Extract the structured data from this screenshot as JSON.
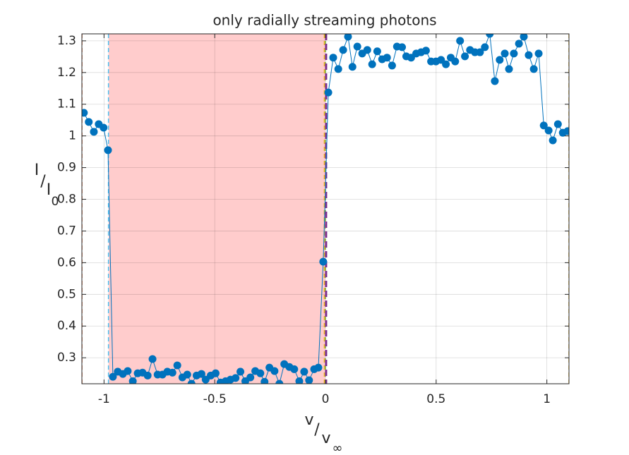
{
  "chart_data": {
    "type": "line",
    "title": "only radially streaming photons",
    "xlabel": [
      "v",
      "/",
      "v",
      "∞"
    ],
    "ylabel": [
      "I",
      "/",
      "I",
      "0"
    ],
    "xlim": [
      -1.1,
      1.1
    ],
    "ylim": [
      0.218,
      1.322
    ],
    "xticks": [
      -1,
      -0.5,
      0,
      0.5,
      1
    ],
    "yticks": [
      0.3,
      0.4,
      0.5,
      0.6,
      0.7,
      0.8,
      0.9,
      1,
      1.1,
      1.2,
      1.3
    ],
    "grid": true,
    "shaded_region": {
      "x": [
        -0.98,
        0
      ],
      "color": "#ffcccc"
    },
    "vlines": [
      {
        "x": -1.1,
        "color": "#D95319",
        "linewidth": 1.5
      },
      {
        "x": -0.98,
        "color": "#4DBEEE",
        "linewidth": 1.5
      },
      {
        "x": -0.005,
        "color": "#EDB120",
        "linewidth": 1.5
      },
      {
        "x": 0,
        "color": "#77AC30",
        "linewidth": 1.5
      },
      {
        "x": 0.003,
        "color": "#7E2F8E",
        "linewidth": 3
      },
      {
        "x": 1.1,
        "color": "#EDB120",
        "linewidth": 1.5
      }
    ],
    "x": [
      -1.091,
      -1.069,
      -1.046,
      -1.024,
      -1.002,
      -0.982,
      -0.96,
      -0.938,
      -0.915,
      -0.893,
      -0.87,
      -0.848,
      -0.826,
      -0.803,
      -0.781,
      -0.758,
      -0.736,
      -0.714,
      -0.691,
      -0.669,
      -0.646,
      -0.624,
      -0.605,
      -0.582,
      -0.56,
      -0.541,
      -0.518,
      -0.496,
      -0.474,
      -0.451,
      -0.429,
      -0.406,
      -0.384,
      -0.362,
      -0.339,
      -0.317,
      -0.294,
      -0.275,
      -0.253,
      -0.23,
      -0.208,
      -0.186,
      -0.163,
      -0.141,
      -0.118,
      -0.096,
      -0.074,
      -0.051,
      -0.032,
      -0.01,
      0.013,
      0.035,
      0.058,
      0.08,
      0.102,
      0.122,
      0.144,
      0.166,
      0.189,
      0.211,
      0.234,
      0.256,
      0.278,
      0.301,
      0.323,
      0.346,
      0.365,
      0.387,
      0.41,
      0.432,
      0.454,
      0.477,
      0.499,
      0.522,
      0.544,
      0.566,
      0.586,
      0.608,
      0.63,
      0.653,
      0.675,
      0.698,
      0.72,
      0.742,
      0.765,
      0.787,
      0.81,
      0.829,
      0.851,
      0.874,
      0.896,
      0.918,
      0.941,
      0.963,
      0.986,
      1.008,
      1.027,
      1.05,
      1.072,
      1.094
    ],
    "series": [
      {
        "color": "#0072BD",
        "values": [
          1.073,
          1.044,
          1.013,
          1.037,
          1.026,
          0.955,
          0.24,
          0.256,
          0.249,
          0.258,
          0.226,
          0.251,
          0.253,
          0.244,
          0.296,
          0.247,
          0.247,
          0.256,
          0.253,
          0.276,
          0.238,
          0.247,
          0.218,
          0.244,
          0.249,
          0.231,
          0.244,
          0.251,
          0.222,
          0.226,
          0.231,
          0.236,
          0.256,
          0.226,
          0.238,
          0.258,
          0.251,
          0.224,
          0.269,
          0.258,
          0.218,
          0.28,
          0.271,
          0.264,
          0.226,
          0.256,
          0.229,
          0.264,
          0.269,
          0.603,
          1.137,
          1.247,
          1.211,
          1.271,
          1.313,
          1.218,
          1.282,
          1.26,
          1.271,
          1.226,
          1.267,
          1.242,
          1.247,
          1.222,
          1.282,
          1.28,
          1.251,
          1.247,
          1.26,
          1.264,
          1.269,
          1.235,
          1.235,
          1.24,
          1.226,
          1.247,
          1.235,
          1.3,
          1.251,
          1.271,
          1.264,
          1.264,
          1.28,
          1.322,
          1.173,
          1.24,
          1.26,
          1.211,
          1.26,
          1.291,
          1.313,
          1.255,
          1.211,
          1.26,
          1.033,
          1.017,
          0.986,
          1.037,
          1.01,
          1.015
        ]
      }
    ]
  }
}
